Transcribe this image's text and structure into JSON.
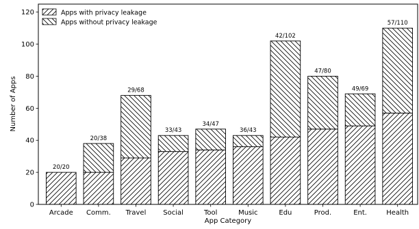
{
  "chart_data": {
    "type": "bar",
    "stacked": true,
    "title": "",
    "xlabel": "App Category",
    "ylabel": "Number of Apps",
    "ylim": [
      0,
      125
    ],
    "yticks": [
      0,
      20,
      40,
      60,
      80,
      100,
      120
    ],
    "grid": false,
    "legend_position": "top-left",
    "categories": [
      "Arcade",
      "Comm.",
      "Travel",
      "Social",
      "Tool",
      "Music",
      "Edu",
      "Prod.",
      "Ent.",
      "Health"
    ],
    "series": [
      {
        "name": "Apps with privacy leakage",
        "pattern": "forward-hatch",
        "values": [
          20,
          20,
          29,
          33,
          34,
          36,
          42,
          47,
          49,
          57
        ]
      },
      {
        "name": "Apps without privacy leakage",
        "pattern": "back-hatch",
        "values": [
          0,
          18,
          39,
          10,
          13,
          7,
          60,
          33,
          20,
          53
        ]
      }
    ],
    "totals": [
      20,
      38,
      68,
      43,
      47,
      43,
      102,
      80,
      69,
      110
    ],
    "bar_labels": [
      "20/20",
      "20/38",
      "29/68",
      "33/43",
      "34/47",
      "36/43",
      "42/102",
      "47/80",
      "49/69",
      "57/110"
    ],
    "colors": {
      "edge": "#000000",
      "fill": "#ffffff",
      "hatch": "#000000"
    }
  }
}
